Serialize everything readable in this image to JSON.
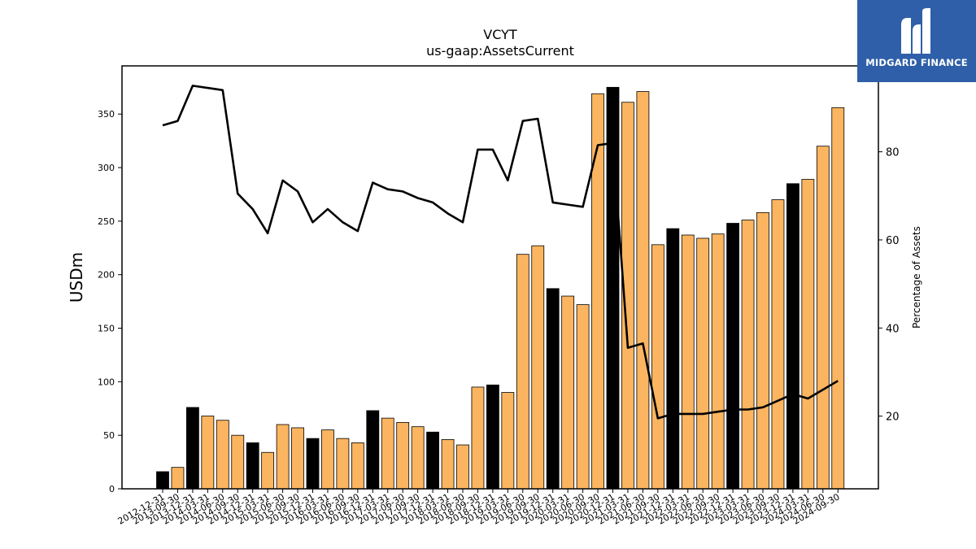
{
  "chart_data": {
    "type": "bar+line",
    "title": "VCYT",
    "subtitle": "us-gaap:AssetsCurrent",
    "ylabel": "USDm",
    "y2label": "Percentage of Assets",
    "ylim": [
      0,
      395
    ],
    "y2lim": [
      3.5,
      99.5
    ],
    "yticks": [
      0,
      50,
      100,
      150,
      200,
      250,
      300,
      350
    ],
    "y2ticks": [
      20,
      40,
      60,
      80
    ],
    "categories": [
      "2012-12-31",
      "2013-09-30",
      "2013-12-31",
      "2014-03-31",
      "2014-06-30",
      "2014-09-30",
      "2014-12-31",
      "2015-03-31",
      "2015-06-30",
      "2015-09-30",
      "2015-12-31",
      "2016-03-31",
      "2016-06-30",
      "2016-09-30",
      "2016-12-31",
      "2017-03-31",
      "2017-06-30",
      "2017-09-30",
      "2017-12-31",
      "2018-03-31",
      "2018-06-30",
      "2018-09-30",
      "2018-12-31",
      "2019-03-31",
      "2019-06-30",
      "2019-09-30",
      "2019-12-31",
      "2020-03-31",
      "2020-06-30",
      "2020-09-30",
      "2020-12-31",
      "2021-03-31",
      "2021-06-30",
      "2021-09-30",
      "2021-12-31",
      "2022-03-31",
      "2022-06-30",
      "2022-09-30",
      "2022-12-31",
      "2023-03-31",
      "2023-06-30",
      "2023-09-30",
      "2023-12-31",
      "2024-03-31",
      "2024-06-30",
      "2024-09-30"
    ],
    "values": [
      16,
      20,
      76,
      68,
      64,
      50,
      43,
      34,
      60,
      57,
      47,
      55,
      47,
      43,
      73,
      66,
      62,
      58,
      53,
      46,
      41,
      95,
      97,
      90,
      219,
      227,
      187,
      180,
      172,
      369,
      375,
      361,
      371,
      228,
      243,
      237,
      234,
      238,
      248,
      251,
      258,
      270,
      285,
      289,
      320,
      356
    ],
    "year_end_flags": [
      1,
      0,
      1,
      0,
      0,
      0,
      1,
      0,
      0,
      0,
      1,
      0,
      0,
      0,
      1,
      0,
      0,
      0,
      1,
      0,
      0,
      0,
      1,
      0,
      0,
      0,
      1,
      0,
      0,
      0,
      1,
      0,
      0,
      0,
      1,
      0,
      0,
      0,
      1,
      0,
      0,
      0,
      1,
      0,
      0,
      0
    ],
    "bar_color": "#fbb560",
    "year_end_color": "#000000",
    "line_series": {
      "values": [
        86,
        87,
        95,
        94.5,
        94,
        70.5,
        67,
        61.5,
        73.5,
        71,
        64,
        67,
        64,
        62,
        73,
        71.5,
        71,
        69.5,
        68.5,
        66,
        64,
        80.5,
        80.5,
        73.5,
        87,
        87.5,
        68.5,
        68,
        67.5,
        81.5,
        82,
        35.5,
        36.5,
        19.5,
        20.5,
        20.5,
        20.5,
        21,
        21.5,
        21.5,
        22,
        23.5,
        25,
        24,
        26,
        28
      ],
      "color": "#000000"
    },
    "grid": false,
    "legend": "none"
  },
  "logo": {
    "text": "MIDGARD FINANCE",
    "color": "#2f5fa8"
  }
}
